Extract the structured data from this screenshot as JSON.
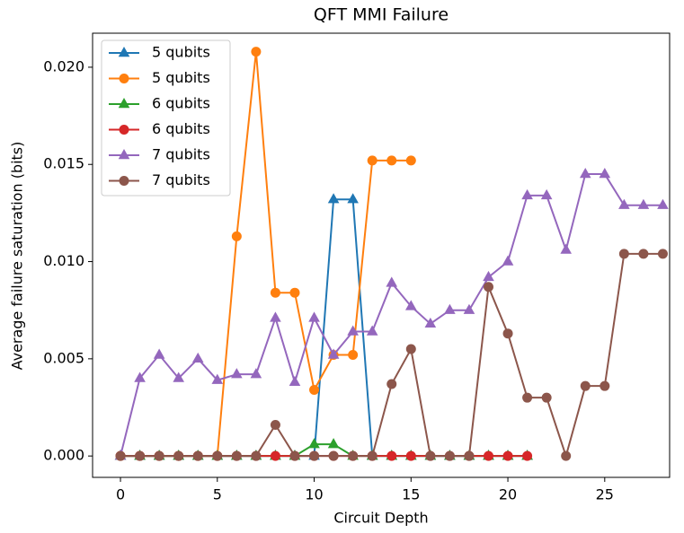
{
  "chart_data": {
    "type": "line",
    "title": "QFT MMI Failure",
    "xlabel": "Circuit Depth",
    "ylabel": "Average failure saturation (bits)",
    "xlim": [
      -1.44,
      28.35
    ],
    "ylim": [
      -0.0011,
      0.02175
    ],
    "xticks": [
      0,
      5,
      10,
      15,
      20,
      25
    ],
    "yticks": [
      {
        "value": 0,
        "label": "0.000"
      },
      {
        "value": 0.005,
        "label": "0.005"
      },
      {
        "value": 0.01,
        "label": "0.010"
      },
      {
        "value": 0.015,
        "label": "0.015"
      },
      {
        "value": 0.02,
        "label": "0.020"
      }
    ],
    "legend": "upper left",
    "grid": false,
    "series": [
      {
        "name": "5 qubits",
        "color": "#1f77b4",
        "marker": "triangle",
        "x": [
          0,
          1,
          2,
          3,
          4,
          5,
          6,
          7,
          8,
          9,
          10,
          11,
          12,
          13,
          14,
          15,
          16,
          17,
          18,
          19,
          20,
          21
        ],
        "values": [
          0,
          0,
          0,
          0,
          0,
          0,
          0,
          0,
          0,
          0,
          0,
          0.0132,
          0.0132,
          0,
          0,
          0,
          0,
          0,
          0,
          0,
          0,
          0
        ]
      },
      {
        "name": "5 qubits",
        "color": "#ff7f0e",
        "marker": "circle",
        "x": [
          0,
          1,
          2,
          3,
          4,
          5,
          6,
          7,
          8,
          9,
          10,
          11,
          12,
          13,
          14,
          15
        ],
        "values": [
          0,
          0,
          0,
          0,
          0,
          0,
          0.0113,
          0.0208,
          0.0084,
          0.0084,
          0.0034,
          0.0052,
          0.0052,
          0.0152,
          0.0152,
          0.0152
        ]
      },
      {
        "name": "6 qubits",
        "color": "#2ca02c",
        "marker": "triangle",
        "x": [
          0,
          1,
          2,
          3,
          4,
          5,
          6,
          7,
          8,
          9,
          10,
          11,
          12,
          13,
          14,
          15,
          16,
          17,
          18,
          19,
          20,
          21
        ],
        "values": [
          0,
          0,
          0,
          0,
          0,
          0,
          0,
          0,
          0,
          0,
          0.0006,
          0.0006,
          0,
          0,
          0,
          0,
          0,
          0,
          0,
          0,
          0,
          0
        ]
      },
      {
        "name": "6 qubits",
        "color": "#d62728",
        "marker": "circle",
        "x": [
          0,
          1,
          2,
          3,
          4,
          5,
          6,
          7,
          8,
          9,
          10,
          11,
          12,
          13,
          14,
          15,
          16,
          17,
          18,
          19,
          20,
          21
        ],
        "values": [
          0,
          0,
          0,
          0,
          0,
          0,
          0,
          0,
          0,
          0,
          0,
          0,
          0,
          0,
          0,
          0,
          0,
          0,
          0,
          0,
          0,
          0
        ]
      },
      {
        "name": "7 qubits",
        "color": "#9467bd",
        "marker": "triangle",
        "x": [
          0,
          1,
          2,
          3,
          4,
          5,
          6,
          7,
          8,
          9,
          10,
          11,
          12,
          13,
          14,
          15,
          16,
          17,
          18,
          19,
          20,
          21,
          22,
          23,
          24,
          25,
          26,
          27,
          28
        ],
        "values": [
          0,
          0.004,
          0.0052,
          0.004,
          0.005,
          0.0039,
          0.0042,
          0.0042,
          0.0071,
          0.0038,
          0.0071,
          0.0052,
          0.0064,
          0.0064,
          0.0089,
          0.0077,
          0.0068,
          0.0075,
          0.0075,
          0.0092,
          0.01,
          0.0134,
          0.0134,
          0.0106,
          0.0145,
          0.0145,
          0.0129,
          0.0129,
          0.0129
        ]
      },
      {
        "name": "7 qubits",
        "color": "#8c564b",
        "marker": "circle",
        "x": [
          0,
          1,
          2,
          3,
          4,
          5,
          6,
          7,
          8,
          9,
          10,
          11,
          12,
          13,
          14,
          15,
          16,
          17,
          18,
          19,
          20,
          21,
          22,
          23,
          24,
          25,
          26,
          27,
          28
        ],
        "values": [
          0,
          0,
          0,
          0,
          0,
          0,
          0,
          0,
          0.0016,
          0,
          0,
          0,
          0,
          0,
          0.0037,
          0.0055,
          0,
          0,
          0,
          0.0087,
          0.0063,
          0.003,
          0.003,
          0,
          0.0036,
          0.0036,
          0.0104,
          0.0104,
          0.0104
        ]
      }
    ]
  }
}
